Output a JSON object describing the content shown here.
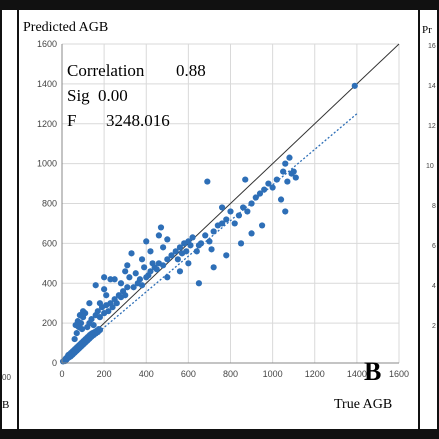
{
  "chart_data": {
    "type": "scatter",
    "panel_letter": "B",
    "y_axis_title": "Predicted AGB",
    "x_axis_title": "True AGB",
    "stats": {
      "correlation_label": "Correlation",
      "correlation_value": "0.88",
      "sig_label": "Sig",
      "sig_value": "0.00",
      "f_label": "F",
      "f_value": "3248.016"
    },
    "xlim": [
      0,
      1600
    ],
    "ylim": [
      0,
      1600
    ],
    "x_ticks": [
      "0",
      "200",
      "400",
      "600",
      "800",
      "1000",
      "1200",
      "1400",
      "1600"
    ],
    "y_ticks": [
      "0",
      "200",
      "400",
      "600",
      "800",
      "1000",
      "1200",
      "1400",
      "1600"
    ],
    "grid": true,
    "reference_line": {
      "style": "solid",
      "color": "#333333",
      "from": [
        0,
        0
      ],
      "to": [
        1600,
        1600
      ]
    },
    "trend_line": {
      "style": "dotted",
      "color": "#2e6fb7",
      "from": [
        0,
        0
      ],
      "to": [
        1400,
        1250
      ]
    },
    "point_color": "#2e6fb7",
    "points": [
      [
        5,
        8
      ],
      [
        10,
        12
      ],
      [
        15,
        10
      ],
      [
        18,
        22
      ],
      [
        22,
        18
      ],
      [
        25,
        30
      ],
      [
        28,
        25
      ],
      [
        30,
        40
      ],
      [
        32,
        28
      ],
      [
        35,
        35
      ],
      [
        38,
        45
      ],
      [
        40,
        32
      ],
      [
        42,
        50
      ],
      [
        45,
        38
      ],
      [
        48,
        55
      ],
      [
        50,
        42
      ],
      [
        52,
        60
      ],
      [
        55,
        48
      ],
      [
        58,
        65
      ],
      [
        60,
        52
      ],
      [
        62,
        70
      ],
      [
        65,
        58
      ],
      [
        68,
        75
      ],
      [
        70,
        62
      ],
      [
        72,
        80
      ],
      [
        75,
        68
      ],
      [
        78,
        85
      ],
      [
        80,
        72
      ],
      [
        82,
        90
      ],
      [
        85,
        78
      ],
      [
        88,
        95
      ],
      [
        90,
        82
      ],
      [
        92,
        100
      ],
      [
        95,
        88
      ],
      [
        98,
        105
      ],
      [
        100,
        92
      ],
      [
        102,
        110
      ],
      [
        105,
        98
      ],
      [
        108,
        115
      ],
      [
        110,
        102
      ],
      [
        112,
        120
      ],
      [
        115,
        108
      ],
      [
        118,
        125
      ],
      [
        120,
        112
      ],
      [
        122,
        130
      ],
      [
        125,
        118
      ],
      [
        128,
        135
      ],
      [
        130,
        122
      ],
      [
        132,
        140
      ],
      [
        135,
        128
      ],
      [
        138,
        145
      ],
      [
        140,
        132
      ],
      [
        145,
        150
      ],
      [
        150,
        140
      ],
      [
        155,
        155
      ],
      [
        160,
        148
      ],
      [
        165,
        162
      ],
      [
        170,
        155
      ],
      [
        175,
        170
      ],
      [
        180,
        165
      ],
      [
        60,
        120
      ],
      [
        70,
        150
      ],
      [
        80,
        180
      ],
      [
        90,
        200
      ],
      [
        100,
        230
      ],
      [
        110,
        250
      ],
      [
        75,
        210
      ],
      [
        85,
        240
      ],
      [
        95,
        170
      ],
      [
        65,
        190
      ],
      [
        120,
        180
      ],
      [
        130,
        200
      ],
      [
        140,
        220
      ],
      [
        150,
        190
      ],
      [
        160,
        240
      ],
      [
        170,
        260
      ],
      [
        180,
        230
      ],
      [
        190,
        280
      ],
      [
        200,
        250
      ],
      [
        210,
        290
      ],
      [
        220,
        260
      ],
      [
        230,
        300
      ],
      [
        240,
        280
      ],
      [
        250,
        320
      ],
      [
        260,
        300
      ],
      [
        270,
        340
      ],
      [
        280,
        330
      ],
      [
        290,
        360
      ],
      [
        300,
        340
      ],
      [
        310,
        380
      ],
      [
        250,
        420
      ],
      [
        300,
        460
      ],
      [
        280,
        400
      ],
      [
        320,
        430
      ],
      [
        350,
        450
      ],
      [
        370,
        420
      ],
      [
        390,
        480
      ],
      [
        410,
        440
      ],
      [
        430,
        500
      ],
      [
        450,
        470
      ],
      [
        200,
        370
      ],
      [
        160,
        390
      ],
      [
        180,
        300
      ],
      [
        210,
        340
      ],
      [
        230,
        420
      ],
      [
        340,
        380
      ],
      [
        360,
        400
      ],
      [
        380,
        390
      ],
      [
        400,
        430
      ],
      [
        420,
        460
      ],
      [
        440,
        480
      ],
      [
        460,
        500
      ],
      [
        480,
        490
      ],
      [
        500,
        520
      ],
      [
        520,
        540
      ],
      [
        540,
        560
      ],
      [
        560,
        580
      ],
      [
        580,
        600
      ],
      [
        600,
        610
      ],
      [
        620,
        630
      ],
      [
        480,
        580
      ],
      [
        500,
        620
      ],
      [
        460,
        640
      ],
      [
        470,
        680
      ],
      [
        550,
        520
      ],
      [
        570,
        550
      ],
      [
        590,
        560
      ],
      [
        610,
        590
      ],
      [
        640,
        560
      ],
      [
        660,
        600
      ],
      [
        680,
        640
      ],
      [
        700,
        610
      ],
      [
        720,
        660
      ],
      [
        740,
        690
      ],
      [
        760,
        700
      ],
      [
        780,
        720
      ],
      [
        800,
        760
      ],
      [
        820,
        700
      ],
      [
        840,
        740
      ],
      [
        860,
        780
      ],
      [
        880,
        760
      ],
      [
        900,
        800
      ],
      [
        920,
        830
      ],
      [
        940,
        850
      ],
      [
        960,
        870
      ],
      [
        980,
        900
      ],
      [
        1000,
        880
      ],
      [
        1020,
        920
      ],
      [
        1050,
        960
      ],
      [
        1060,
        1000
      ],
      [
        1080,
        1030
      ],
      [
        1100,
        960
      ],
      [
        1110,
        930
      ],
      [
        1090,
        950
      ],
      [
        1070,
        910
      ],
      [
        1060,
        760
      ],
      [
        1040,
        820
      ],
      [
        690,
        910
      ],
      [
        870,
        920
      ],
      [
        760,
        780
      ],
      [
        400,
        610
      ],
      [
        420,
        560
      ],
      [
        380,
        520
      ],
      [
        330,
        550
      ],
      [
        310,
        490
      ],
      [
        200,
        430
      ],
      [
        130,
        300
      ],
      [
        100,
        260
      ],
      [
        650,
        400
      ],
      [
        720,
        480
      ],
      [
        780,
        540
      ],
      [
        850,
        600
      ],
      [
        900,
        650
      ],
      [
        950,
        690
      ],
      [
        650,
        590
      ],
      [
        710,
        570
      ],
      [
        600,
        500
      ],
      [
        560,
        460
      ],
      [
        500,
        430
      ],
      [
        1390,
        1390
      ]
    ]
  }
}
